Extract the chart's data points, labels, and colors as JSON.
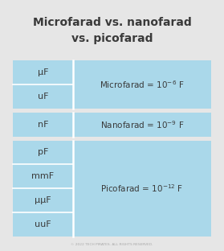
{
  "title": "Microfarad vs. nanofarad\nvs. picofarad",
  "bg_color": "#e6e6e6",
  "cell_bg": "#aad8ea",
  "text_color": "#3a3a3a",
  "footer": "© 2022 TECH PIRATES. ALL RIGHTS RESERVED.",
  "sections": [
    {
      "left_labels": [
        "μF",
        "uF"
      ],
      "right_label": "Microfarad = 10",
      "exponent": "-6"
    },
    {
      "left_labels": [
        "nF"
      ],
      "right_label": "Nanofarad = 10",
      "exponent": "-9"
    },
    {
      "left_labels": [
        "pF",
        "mmF",
        "μμF",
        "uuF"
      ],
      "right_label": "Picofarad = 10",
      "exponent": "-12"
    }
  ]
}
